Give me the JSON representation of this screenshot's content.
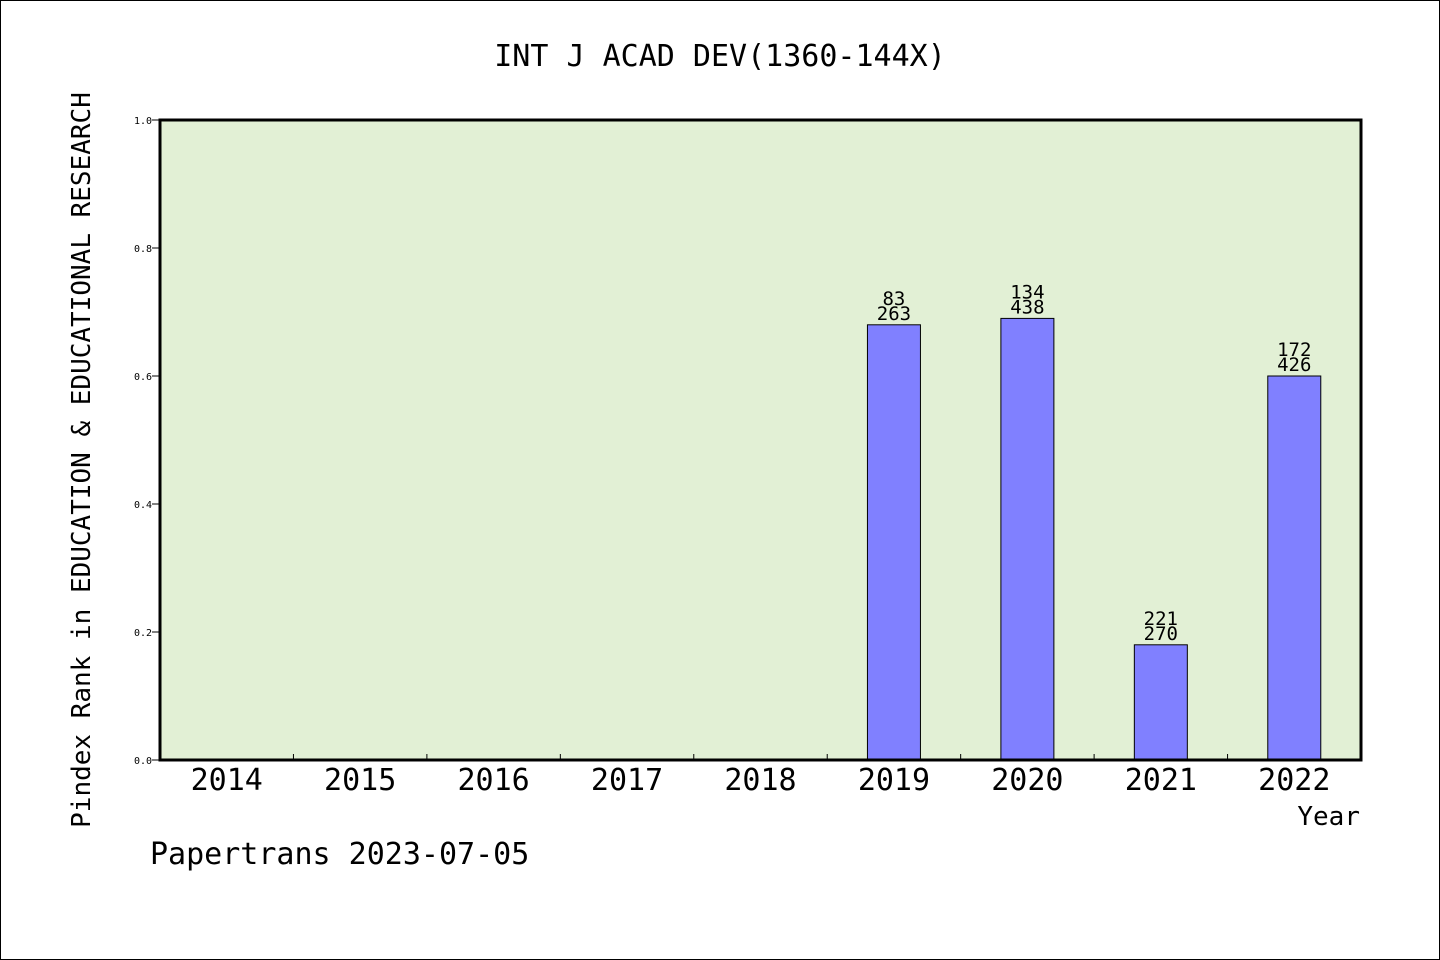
{
  "chart_data": {
    "type": "bar",
    "title": "INT J ACAD DEV(1360-144X)",
    "xlabel": "Year",
    "ylabel": "Pindex Rank in EDUCATION & EDUCATIONAL RESEARCH",
    "categories": [
      "2014",
      "2015",
      "2016",
      "2017",
      "2018",
      "2019",
      "2020",
      "2021",
      "2022"
    ],
    "values": [
      null,
      null,
      null,
      null,
      null,
      0.68,
      0.69,
      0.18,
      0.6
    ],
    "rank": [
      null,
      null,
      null,
      null,
      null,
      "83",
      "134",
      "221",
      "172"
    ],
    "total": [
      null,
      null,
      null,
      null,
      null,
      "263",
      "438",
      "270",
      "426"
    ],
    "ylim": [
      0,
      1.0
    ],
    "yticks": [
      "0.0",
      "0.2",
      "0.4",
      "0.6",
      "0.8",
      "1.0"
    ],
    "grid": false,
    "legend": "none",
    "plot_background": "#e2f0d5",
    "bar_color": "#8080ff"
  },
  "footer": {
    "credit": "Papertrans 2023-07-05"
  }
}
